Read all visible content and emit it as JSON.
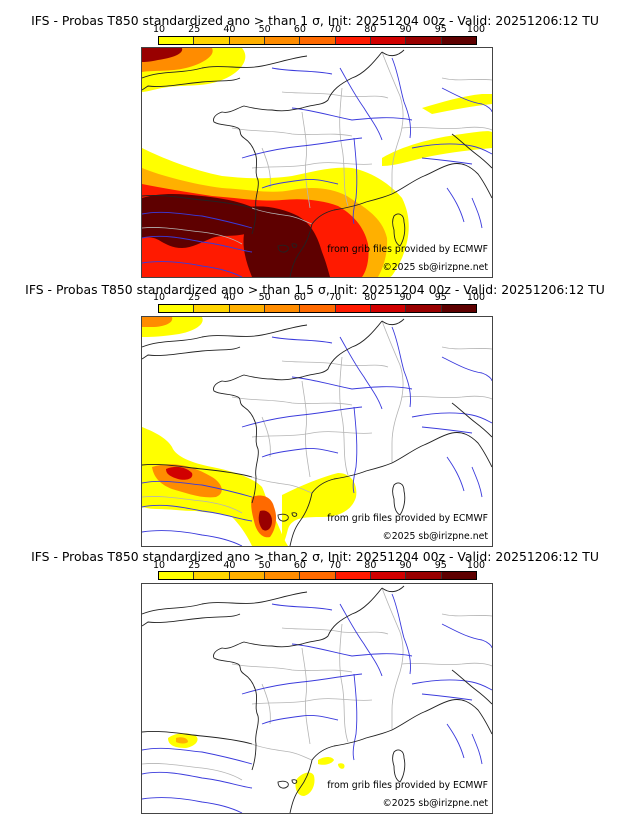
{
  "panels": [
    {
      "title": "IFS - Probas T850  standardized ano > than 1 σ, Init: 20251204 00z - Valid: 20251206:12 TU",
      "threshold_sigma": "1",
      "field_intensity": "high"
    },
    {
      "title": "IFS - Probas T850  standardized ano > than 1.5 σ, Init: 20251204 00z - Valid: 20251206:12 TU",
      "threshold_sigma": "1.5",
      "field_intensity": "medium"
    },
    {
      "title": "IFS - Probas T850  standardized ano > than 2 σ, Init: 20251204 00z - Valid: 20251206:12 TU",
      "threshold_sigma": "2",
      "field_intensity": "low"
    }
  ],
  "colorbar": {
    "ticks": [
      "10",
      "25",
      "40",
      "50",
      "60",
      "70",
      "80",
      "90",
      "95",
      "100"
    ],
    "colors": [
      "#ffff00",
      "#ffd500",
      "#ffb000",
      "#ff8c00",
      "#ff6a00",
      "#ff1a00",
      "#d10000",
      "#990000",
      "#5e0000"
    ]
  },
  "credits": {
    "source": "from grib files provided by ECMWF",
    "copyright": "©2025 sb@irizpne.net"
  },
  "map_colors": {
    "coast": "#222222",
    "rivers": "#3a3adc",
    "borders": "#b4b4b4"
  }
}
